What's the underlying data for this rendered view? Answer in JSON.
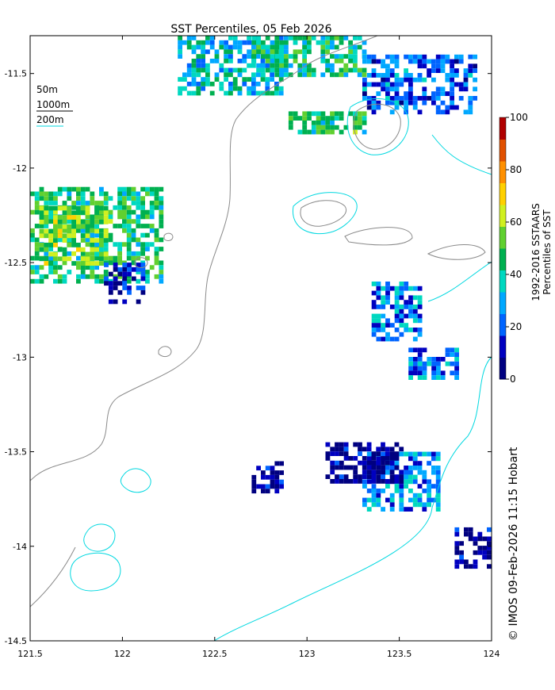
{
  "title": "SST Percentiles, 05 Feb 2026",
  "x_ticks": [
    "121.5",
    "122",
    "122.5",
    "123",
    "123.5",
    "124"
  ],
  "y_ticks": [
    "-11.5",
    "-12",
    "-12.5",
    "-13",
    "-13.5",
    "-14",
    "-14.5"
  ],
  "legend": {
    "lines": [
      {
        "label": "50m",
        "color": "#ffffff"
      },
      {
        "label": "1000m",
        "color": "#000000"
      },
      {
        "label": "200m",
        "color": "#00d8e0"
      }
    ]
  },
  "colorbar": {
    "label_line1": "1992-2016 SSTAARS",
    "label_line2": "Percentiles of SST",
    "ticks": [
      "0",
      "20",
      "40",
      "60",
      "80",
      "100"
    ],
    "colors": [
      "#000080",
      "#0000c0",
      "#0064ff",
      "#00a8ff",
      "#00d8c0",
      "#00b050",
      "#60d030",
      "#d0f020",
      "#ffd000",
      "#ff9000",
      "#e05000",
      "#b00000"
    ]
  },
  "credit": "© IMOS 09-Feb-2026 11:15 Hobart",
  "chart_data": {
    "type": "heatmap",
    "xlim": [
      121.5,
      124
    ],
    "ylim": [
      -14.5,
      -11.3
    ],
    "value_range": [
      0,
      100
    ],
    "patches": [
      {
        "lon": [
          121.5,
          122.2
        ],
        "lat": [
          -12.6,
          -12.1
        ],
        "percentile": 45
      },
      {
        "lon": [
          121.55,
          121.9
        ],
        "lat": [
          -12.5,
          -12.2
        ],
        "percentile": 55
      },
      {
        "lon": [
          121.9,
          122.1
        ],
        "lat": [
          -12.7,
          -12.5
        ],
        "percentile": 10
      },
      {
        "lon": [
          122.3,
          122.85
        ],
        "lat": [
          -11.6,
          -11.3
        ],
        "percentile": 35
      },
      {
        "lon": [
          122.7,
          123.3
        ],
        "lat": [
          -11.5,
          -11.3
        ],
        "percentile": 40
      },
      {
        "lon": [
          123.3,
          123.9
        ],
        "lat": [
          -11.7,
          -11.4
        ],
        "percentile": 20
      },
      {
        "lon": [
          122.9,
          123.3
        ],
        "lat": [
          -11.8,
          -11.7
        ],
        "percentile": 45
      },
      {
        "lon": [
          123.35,
          123.6
        ],
        "lat": [
          -12.9,
          -12.6
        ],
        "percentile": 25
      },
      {
        "lon": [
          123.55,
          123.8
        ],
        "lat": [
          -13.1,
          -12.95
        ],
        "percentile": 25
      },
      {
        "lon": [
          123.3,
          123.7
        ],
        "lat": [
          -13.8,
          -13.5
        ],
        "percentile": 25
      },
      {
        "lon": [
          123.1,
          123.5
        ],
        "lat": [
          -13.65,
          -13.45
        ],
        "percentile": 5
      },
      {
        "lon": [
          123.8,
          124
        ],
        "lat": [
          -14.1,
          -13.9
        ],
        "percentile": 5
      },
      {
        "lon": [
          122.7,
          122.85
        ],
        "lat": [
          -13.7,
          -13.55
        ],
        "percentile": 5
      }
    ]
  }
}
